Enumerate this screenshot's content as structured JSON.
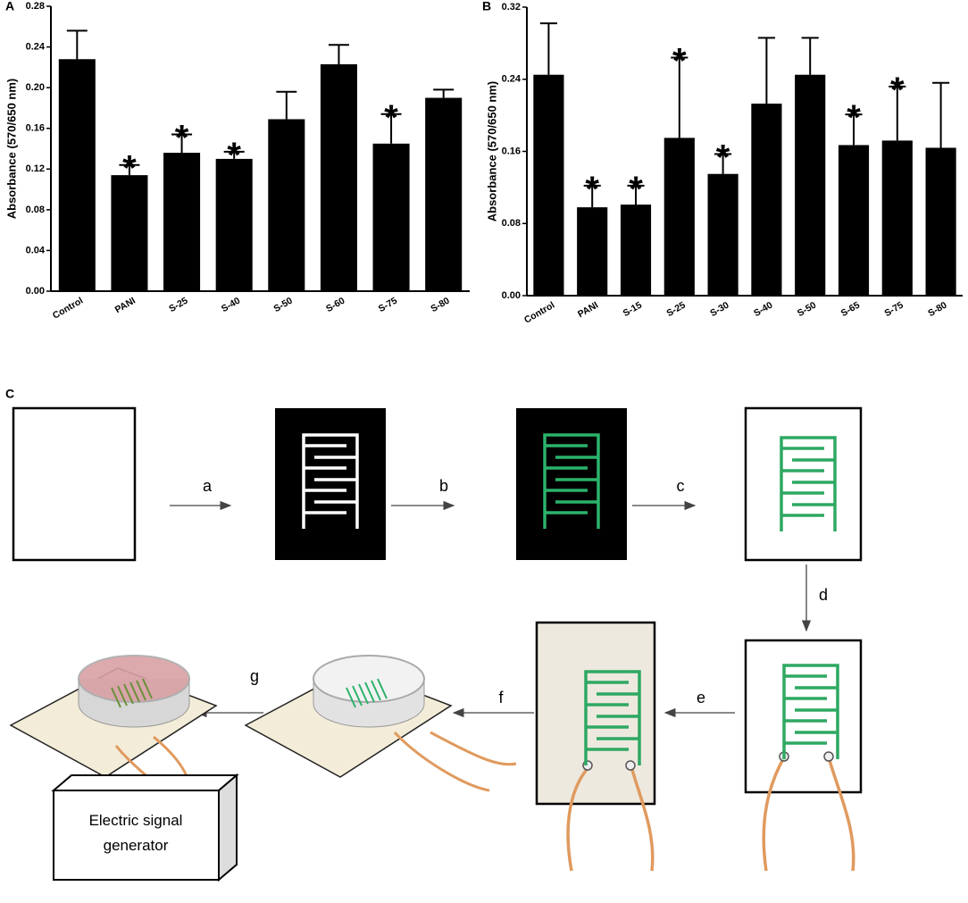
{
  "chart_data": [
    {
      "type": "bar",
      "panel": "A",
      "y_label": "Absorbance (570/650 nm)",
      "categories": [
        "Control",
        "PANI",
        "S-25",
        "S-40",
        "S-50",
        "S-60",
        "S-75",
        "S-80"
      ],
      "values": [
        0.228,
        0.114,
        0.136,
        0.13,
        0.169,
        0.223,
        0.145,
        0.19
      ],
      "errors": [
        0.028,
        0.01,
        0.018,
        0.007,
        0.027,
        0.019,
        0.029,
        0.008
      ],
      "significance_labels": [
        null,
        "*",
        "*",
        "*",
        null,
        null,
        "*",
        null
      ],
      "color": "#000000",
      "ylim": [
        0,
        0.28
      ],
      "yticks": [
        {
          "value": 0,
          "label": "0.00"
        },
        {
          "value": 0.04,
          "label": "0.04"
        },
        {
          "value": 0.08,
          "label": "0.08"
        },
        {
          "value": 0.12,
          "label": "0.12"
        },
        {
          "value": 0.16,
          "label": "0.16"
        },
        {
          "value": 0.2,
          "label": "0.20"
        },
        {
          "value": 0.24,
          "label": "0.24"
        },
        {
          "value": 0.28,
          "label": "0.28"
        }
      ]
    },
    {
      "type": "bar",
      "panel": "B",
      "y_label": "Absorbance (570/650 nm)",
      "categories": [
        "Control",
        "PANI",
        "S-15",
        "S-25",
        "S-30",
        "S-40",
        "S-50",
        "S-65",
        "S-75",
        "S-80"
      ],
      "values": [
        0.245,
        0.098,
        0.101,
        0.175,
        0.135,
        0.213,
        0.245,
        0.167,
        0.172,
        0.164
      ],
      "errors": [
        0.057,
        0.024,
        0.021,
        0.089,
        0.022,
        0.073,
        0.041,
        0.034,
        0.06,
        0.072
      ],
      "significance_labels": [
        null,
        "*",
        "*",
        "*",
        "*",
        null,
        null,
        "*",
        "*",
        null
      ],
      "color": "#000000",
      "ylim": [
        0,
        0.32
      ],
      "yticks": [
        {
          "value": 0,
          "label": "0.00"
        },
        {
          "value": 0.08,
          "label": "0.08"
        },
        {
          "value": 0.16,
          "label": "0.16"
        },
        {
          "value": 0.24,
          "label": "0.24"
        },
        {
          "value": 0.32,
          "label": "0.32"
        }
      ]
    }
  ],
  "diagram": {
    "panel": "C",
    "steps": [
      "a",
      "b",
      "c",
      "d",
      "e",
      "f",
      "g"
    ],
    "device_label": "Electric signal generator"
  }
}
